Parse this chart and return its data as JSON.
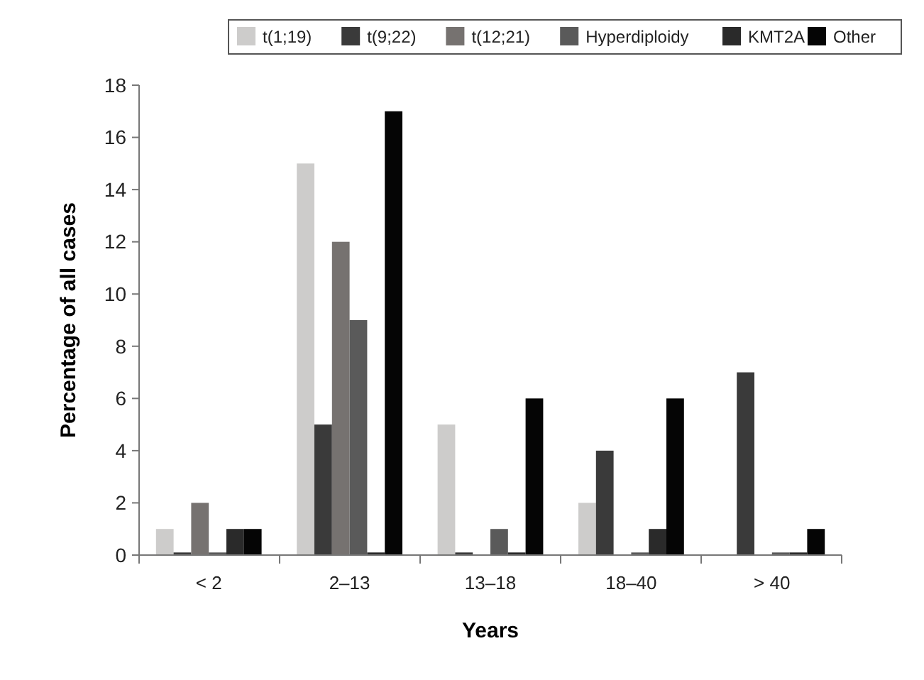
{
  "chart_data": {
    "type": "bar",
    "xlabel": "Years",
    "ylabel": "Percentage of all cases",
    "categories": [
      "< 2",
      "2–13",
      "13–18",
      "18–40",
      "> 40"
    ],
    "series": [
      {
        "name": "t(1;19)",
        "color": "#cdcccb",
        "values": [
          1,
          15,
          5,
          2,
          0
        ]
      },
      {
        "name": "t(9;22)",
        "color": "#3a3a3a",
        "values": [
          0.1,
          5,
          0.1,
          4,
          7
        ]
      },
      {
        "name": "t(12;21)",
        "color": "#767270",
        "values": [
          2,
          12,
          0,
          0,
          0
        ]
      },
      {
        "name": "Hyperdiploidy",
        "color": "#5a5a5a",
        "values": [
          0.1,
          9,
          1,
          0.1,
          0.1
        ]
      },
      {
        "name": "KMT2A",
        "color": "#2a2a2a",
        "values": [
          1,
          0.1,
          0.1,
          1,
          0.1
        ]
      },
      {
        "name": "Other",
        "color": "#050505",
        "values": [
          1,
          17,
          6,
          6,
          1
        ]
      }
    ],
    "ylim": [
      0,
      18
    ],
    "yticks": [
      0,
      2,
      4,
      6,
      8,
      10,
      12,
      14,
      16,
      18
    ],
    "grid": false,
    "legend": "top right"
  }
}
